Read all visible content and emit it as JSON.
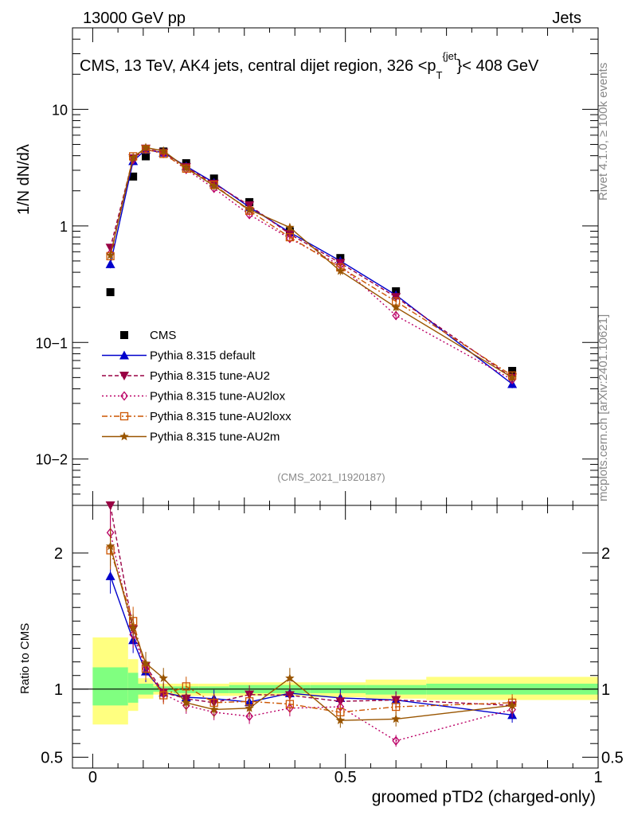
{
  "header": {
    "energy": "13000 GeV pp",
    "category": "Jets",
    "title_prefix": "CMS, 13 TeV, AK4 jets, central dijet region, 326 <p",
    "title_sub": "T",
    "title_sup": "{jet",
    "title_suffix": "}< 408 GeV",
    "analysis_id": "(CMS_2021_I1920187)",
    "side_rivet": "Rivet 4.1.0, ≥ 100k events",
    "side_site": "mcplots.cern.ch [arXiv:2401.10621]"
  },
  "colors": {
    "CMS": "#000000",
    "default": "#0000cc",
    "AU2": "#990044",
    "AU2lox": "#bb0066",
    "AU2loxx": "#cc5500",
    "AU2m": "#995500",
    "band_inner": "#80ff80",
    "band_outer": "#ffff80"
  },
  "chart_data": [
    {
      "type": "scatter",
      "scale": "log",
      "ylabel": "1/N dN/dλ",
      "xlim": [
        -0.04,
        1.0
      ],
      "ylim": [
        0.004,
        50
      ],
      "y_tick_labels": [
        "10",
        "1",
        "10−1",
        "10−2"
      ],
      "x": [
        0.035,
        0.08,
        0.105,
        0.14,
        0.185,
        0.24,
        0.31,
        0.39,
        0.49,
        0.6,
        0.83
      ],
      "series": [
        {
          "name": "CMS",
          "key": "CMS",
          "values": [
            0.27,
            2.65,
            3.95,
            4.35,
            3.45,
            2.55,
            1.6,
            0.9,
            0.53,
            0.275,
            0.057
          ]
        },
        {
          "name": "Pythia 8.315 default",
          "key": "default",
          "values": [
            0.47,
            3.6,
            4.5,
            4.25,
            3.25,
            2.35,
            1.45,
            0.88,
            0.5,
            0.255,
            0.044
          ]
        },
        {
          "name": "Pythia 8.315 tune-AU2",
          "key": "AU2",
          "values": [
            0.65,
            3.8,
            4.6,
            4.25,
            3.2,
            2.3,
            1.5,
            0.85,
            0.48,
            0.245,
            0.05
          ]
        },
        {
          "name": "Pythia 8.315 tune-AU2lox",
          "key": "AU2lox",
          "values": [
            0.58,
            3.7,
            4.55,
            4.2,
            3.05,
            2.1,
            1.25,
            0.78,
            0.46,
            0.17,
            0.048
          ]
        },
        {
          "name": "Pythia 8.315 tune-AU2loxx",
          "key": "AU2loxx",
          "values": [
            0.55,
            3.95,
            4.55,
            4.15,
            3.1,
            2.25,
            1.35,
            0.8,
            0.44,
            0.225,
            0.052
          ]
        },
        {
          "name": "Pythia 8.315 tune-AU2m",
          "key": "AU2m",
          "values": [
            0.56,
            3.85,
            4.7,
            4.4,
            3.15,
            2.2,
            1.38,
            0.97,
            0.41,
            0.2,
            0.05
          ]
        }
      ]
    },
    {
      "type": "line",
      "ylabel": "Ratio to CMS",
      "xlabel": "groomed pTD2 (charged-only)",
      "xlim": [
        -0.04,
        1.0
      ],
      "ylim": [
        0.42,
        2.35
      ],
      "x_tick_labels": [
        "0",
        "0.5",
        "1"
      ],
      "y_tick_labels": [
        "2",
        "1",
        "0.5"
      ],
      "x": [
        0.035,
        0.08,
        0.105,
        0.14,
        0.185,
        0.24,
        0.31,
        0.39,
        0.49,
        0.6,
        0.83
      ],
      "series": [
        {
          "name": "Pythia 8.315 default",
          "key": "default",
          "values": [
            1.83,
            1.36,
            1.13,
            0.975,
            0.94,
            0.93,
            0.905,
            0.97,
            0.935,
            0.92,
            0.81
          ]
        },
        {
          "name": "Pythia 8.315 tune-AU2",
          "key": "AU2",
          "values": [
            2.35,
            1.44,
            1.17,
            0.975,
            0.93,
            0.9,
            0.96,
            0.955,
            0.91,
            0.92,
            0.88
          ]
        },
        {
          "name": "Pythia 8.315 tune-AU2lox",
          "key": "AU2lox",
          "values": [
            2.15,
            1.4,
            1.15,
            0.965,
            0.88,
            0.83,
            0.8,
            0.86,
            0.87,
            0.62,
            0.85
          ]
        },
        {
          "name": "Pythia 8.315 tune-AU2loxx",
          "key": "AU2loxx",
          "values": [
            2.02,
            1.5,
            1.15,
            0.955,
            1.02,
            0.9,
            0.91,
            0.89,
            0.83,
            0.87,
            0.9
          ]
        },
        {
          "name": "Pythia 8.315 tune-AU2m",
          "key": "AU2m",
          "values": [
            2.05,
            1.45,
            1.19,
            1.08,
            0.9,
            0.85,
            0.86,
            1.08,
            0.77,
            0.78,
            0.88
          ]
        }
      ],
      "uncertainty_bands": [
        {
          "x0": 0.0,
          "x1": 0.07,
          "inner": [
            0.88,
            1.16
          ],
          "outer": [
            0.74,
            1.38
          ]
        },
        {
          "x0": 0.07,
          "x1": 0.09,
          "inner": [
            0.9,
            1.12
          ],
          "outer": [
            0.84,
            1.22
          ]
        },
        {
          "x0": 0.09,
          "x1": 0.12,
          "inner": [
            0.96,
            1.04
          ],
          "outer": [
            0.93,
            1.08
          ]
        },
        {
          "x0": 0.12,
          "x1": 0.16,
          "inner": [
            0.98,
            1.02
          ],
          "outer": [
            0.96,
            1.04
          ]
        },
        {
          "x0": 0.16,
          "x1": 0.21,
          "inner": [
            0.97,
            1.02
          ],
          "outer": [
            0.95,
            1.04
          ]
        },
        {
          "x0": 0.21,
          "x1": 0.27,
          "inner": [
            0.97,
            1.02
          ],
          "outer": [
            0.95,
            1.04
          ]
        },
        {
          "x0": 0.27,
          "x1": 0.35,
          "inner": [
            0.97,
            1.03
          ],
          "outer": [
            0.95,
            1.05
          ]
        },
        {
          "x0": 0.35,
          "x1": 0.43,
          "inner": [
            0.97,
            1.03
          ],
          "outer": [
            0.95,
            1.05
          ]
        },
        {
          "x0": 0.43,
          "x1": 0.54,
          "inner": [
            0.97,
            1.03
          ],
          "outer": [
            0.94,
            1.05
          ]
        },
        {
          "x0": 0.54,
          "x1": 0.66,
          "inner": [
            0.96,
            1.03
          ],
          "outer": [
            0.93,
            1.07
          ]
        },
        {
          "x0": 0.66,
          "x1": 1.0,
          "inner": [
            0.96,
            1.04
          ],
          "outer": [
            0.92,
            1.09
          ]
        }
      ]
    }
  ]
}
